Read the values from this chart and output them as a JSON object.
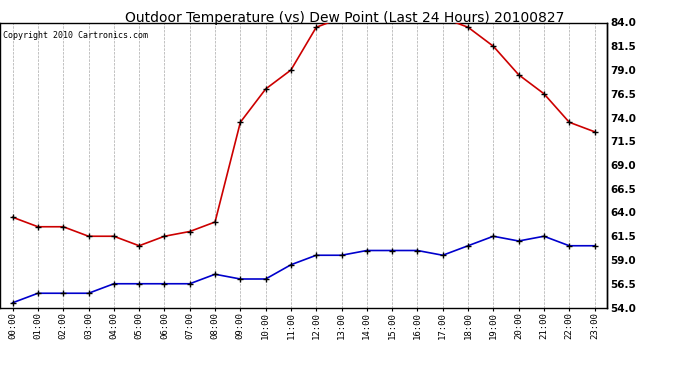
{
  "title": "Outdoor Temperature (vs) Dew Point (Last 24 Hours) 20100827",
  "copyright": "Copyright 2010 Cartronics.com",
  "hours": [
    "00:00",
    "01:00",
    "02:00",
    "03:00",
    "04:00",
    "05:00",
    "06:00",
    "07:00",
    "08:00",
    "09:00",
    "10:00",
    "11:00",
    "12:00",
    "13:00",
    "14:00",
    "15:00",
    "16:00",
    "17:00",
    "18:00",
    "19:00",
    "20:00",
    "21:00",
    "22:00",
    "23:00"
  ],
  "temp": [
    63.5,
    62.5,
    62.5,
    61.5,
    61.5,
    60.5,
    61.5,
    62.0,
    63.0,
    73.5,
    77.0,
    79.0,
    83.5,
    84.5,
    84.5,
    84.5,
    84.5,
    84.5,
    83.5,
    81.5,
    78.5,
    76.5,
    73.5,
    72.5
  ],
  "dew": [
    54.5,
    55.5,
    55.5,
    55.5,
    56.5,
    56.5,
    56.5,
    56.5,
    57.5,
    57.0,
    57.0,
    58.5,
    59.5,
    59.5,
    60.0,
    60.0,
    60.0,
    59.5,
    60.5,
    61.5,
    61.0,
    61.5,
    60.5,
    60.5
  ],
  "temp_color": "#cc0000",
  "dew_color": "#0000cc",
  "ylim": [
    54.0,
    84.0
  ],
  "yticks_right": [
    54.0,
    56.5,
    59.0,
    61.5,
    64.0,
    66.5,
    69.0,
    71.5,
    74.0,
    76.5,
    79.0,
    81.5,
    84.0
  ],
  "bg_color": "#ffffff",
  "grid_color": "#aaaaaa",
  "title_fontsize": 10,
  "copyright_fontsize": 6,
  "marker": "+",
  "marker_color": "#000000",
  "marker_size": 5,
  "linewidth": 1.2
}
